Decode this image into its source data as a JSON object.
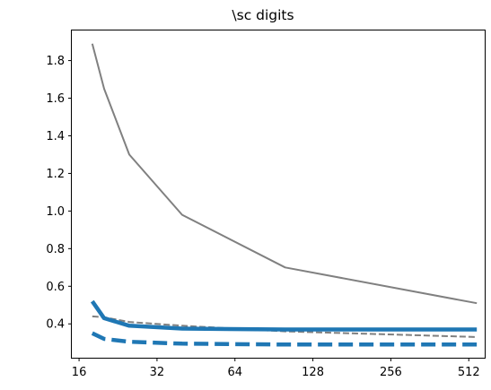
{
  "chart_data": {
    "type": "line",
    "title": "\\sc digits",
    "xlabel": "",
    "ylabel": "",
    "xscale": "log2",
    "xlim": [
      15,
      590
    ],
    "ylim": [
      0.22,
      1.96
    ],
    "grid": false,
    "legend": "none",
    "xticks": [
      {
        "value": 16,
        "label": "16"
      },
      {
        "value": 32,
        "label": "32"
      },
      {
        "value": 64,
        "label": "64"
      },
      {
        "value": 128,
        "label": "128"
      },
      {
        "value": 256,
        "label": "256"
      },
      {
        "value": 512,
        "label": "512"
      }
    ],
    "yticks": [
      {
        "value": 0.4,
        "label": "0.4"
      },
      {
        "value": 0.6,
        "label": "0.6"
      },
      {
        "value": 0.8,
        "label": "0.8"
      },
      {
        "value": 1.0,
        "label": "1.0"
      },
      {
        "value": 1.2,
        "label": "1.2"
      },
      {
        "value": 1.4,
        "label": "1.4"
      },
      {
        "value": 1.6,
        "label": "1.6"
      },
      {
        "value": 1.8,
        "label": "1.8"
      }
    ],
    "series": [
      {
        "name": "gray-solid",
        "color": "#808080",
        "style": "solid",
        "width": "thin",
        "x": [
          18,
          20,
          25,
          40,
          100,
          550
        ],
        "y": [
          1.89,
          1.65,
          1.3,
          0.98,
          0.7,
          0.51
        ]
      },
      {
        "name": "gray-dashed",
        "color": "#808080",
        "style": "dashed",
        "width": "thin",
        "x": [
          18,
          20,
          25,
          40,
          100,
          550
        ],
        "y": [
          0.44,
          0.435,
          0.41,
          0.39,
          0.36,
          0.33
        ]
      },
      {
        "name": "blue-solid",
        "color": "#1f77b4",
        "style": "solid",
        "width": "thick",
        "x": [
          18,
          20,
          25,
          40,
          100,
          550
        ],
        "y": [
          0.52,
          0.43,
          0.39,
          0.375,
          0.37,
          0.37
        ]
      },
      {
        "name": "blue-dashed",
        "color": "#1f77b4",
        "style": "dashed",
        "width": "thick",
        "x": [
          18,
          20,
          25,
          40,
          100,
          550
        ],
        "y": [
          0.35,
          0.32,
          0.305,
          0.295,
          0.29,
          0.29
        ]
      }
    ]
  }
}
